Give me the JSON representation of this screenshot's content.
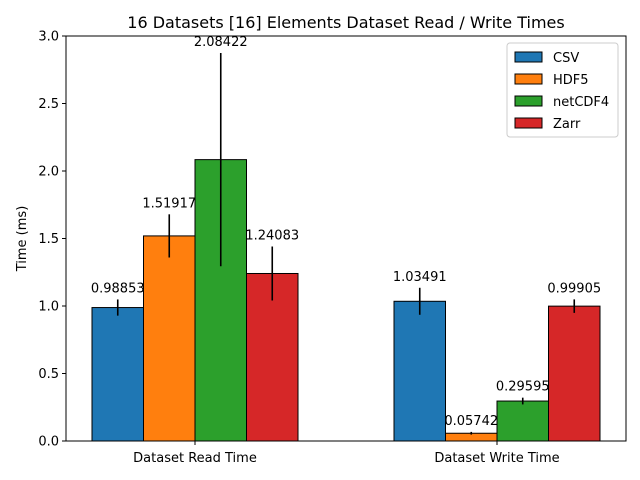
{
  "chart_data": {
    "type": "bar",
    "title": "16 Datasets [16] Elements Dataset Read / Write Times",
    "ylabel": "Time (ms)",
    "xlabel": "",
    "categories": [
      "Dataset Read Time",
      "Dataset Write Time"
    ],
    "ylim": [
      0,
      3.0
    ],
    "yticks": [
      "0.0",
      "0.5",
      "1.0",
      "1.5",
      "2.0",
      "2.5",
      "3.0"
    ],
    "grid": false,
    "legend_position": "top-right",
    "series": [
      {
        "name": "CSV",
        "color": "#1f77b4",
        "values": [
          0.98853,
          1.03491
        ],
        "labels": [
          "0.98853",
          "1.03491"
        ],
        "errors": [
          0.06,
          0.1
        ]
      },
      {
        "name": "HDF5",
        "color": "#ff7f0e",
        "values": [
          1.51917,
          0.05742
        ],
        "labels": [
          "1.51917",
          "0.05742"
        ],
        "errors": [
          0.16,
          0.01
        ]
      },
      {
        "name": "netCDF4",
        "color": "#2ca02c",
        "values": [
          2.08422,
          0.29595
        ],
        "labels": [
          "2.08422",
          "0.29595"
        ],
        "errors": [
          0.79,
          0.025
        ]
      },
      {
        "name": "Zarr",
        "color": "#d62728",
        "values": [
          1.24083,
          0.99905
        ],
        "labels": [
          "1.24083",
          "0.99905"
        ],
        "errors": [
          0.2,
          0.05
        ]
      }
    ]
  }
}
